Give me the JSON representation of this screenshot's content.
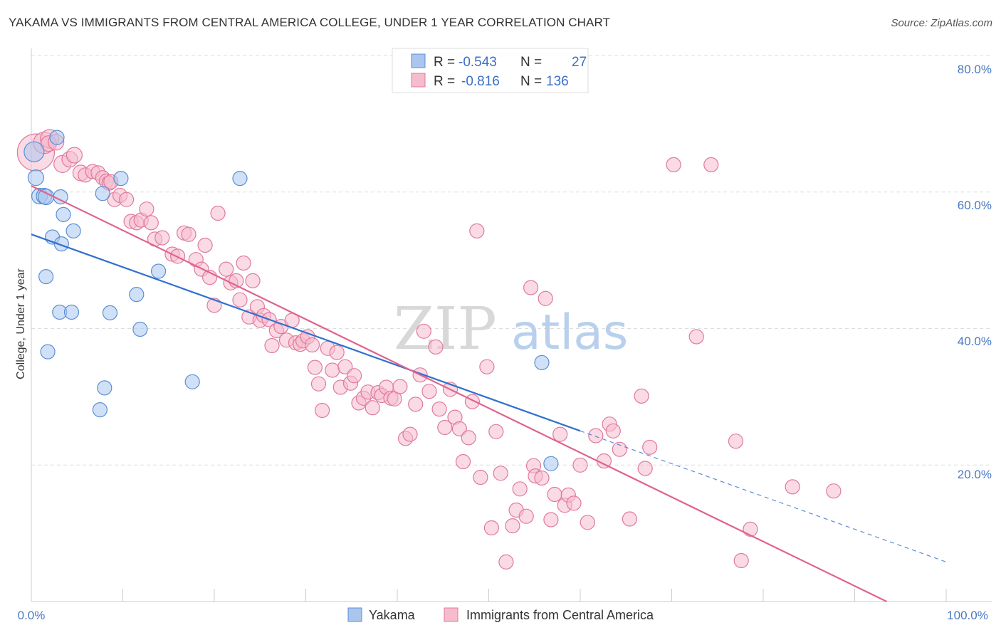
{
  "title": "YAKAMA VS IMMIGRANTS FROM CENTRAL AMERICA COLLEGE, UNDER 1 YEAR CORRELATION CHART",
  "source": "Source: ZipAtlas.com",
  "watermark": {
    "zip": "ZIP",
    "atlas": "atlas"
  },
  "colors": {
    "blue": "#5b8fd6",
    "blue_fill": "#aac6ee",
    "blue_line": "#2f6fd0",
    "pink": "#e07a9c",
    "pink_fill": "#f6bccd",
    "pink_line": "#e0638d",
    "grid": "#dddddd",
    "axis_label": "#4a78c4"
  },
  "legend": {
    "rows": [
      {
        "r_label": "R =",
        "r_value": "-0.543",
        "n_label": "N =",
        "n_value": "27"
      },
      {
        "r_label": "R =",
        "r_value": "-0.816",
        "n_label": "N =",
        "n_value": "136"
      }
    ]
  },
  "bottom_legend": [
    {
      "label": "Yakama"
    },
    {
      "label": "Immigrants from Central America"
    }
  ],
  "chart_data": {
    "type": "scatter",
    "ylabel": "College, Under 1 year",
    "xlabel": "",
    "x_tick_labels": [
      "0.0%",
      "100.0%"
    ],
    "y_tick_labels": [
      "20.0%",
      "40.0%",
      "60.0%",
      "80.0%"
    ],
    "xlim": [
      0,
      100
    ],
    "ylim": [
      0,
      82
    ],
    "y_ticks": [
      20,
      40,
      60,
      80
    ],
    "grid": true,
    "legend_position": "top-center",
    "series": [
      {
        "name": "Yakama",
        "trend": {
          "x0": 0,
          "y0": 53.8,
          "x1": 60,
          "y1": 25.0,
          "dash_to_x": 100,
          "dash_to_y": 5.8
        },
        "points": [
          [
            0.3,
            65.9,
            14
          ],
          [
            0.5,
            62.1,
            11
          ],
          [
            0.9,
            59.4,
            11
          ],
          [
            1.4,
            59.4,
            11
          ],
          [
            1.6,
            59.3,
            11
          ],
          [
            2.8,
            68.0,
            10
          ],
          [
            3.2,
            59.3,
            10
          ],
          [
            3.5,
            56.7,
            10
          ],
          [
            2.3,
            53.4,
            10
          ],
          [
            3.3,
            52.4,
            10
          ],
          [
            4.6,
            54.3,
            10
          ],
          [
            1.6,
            47.6,
            10
          ],
          [
            1.8,
            36.6,
            10
          ],
          [
            3.1,
            42.4,
            10
          ],
          [
            4.4,
            42.4,
            10
          ],
          [
            8.6,
            42.3,
            10
          ],
          [
            11.5,
            45.0,
            10
          ],
          [
            11.9,
            39.9,
            10
          ],
          [
            7.5,
            28.1,
            10
          ],
          [
            7.8,
            59.8,
            10
          ],
          [
            9.8,
            62.0,
            10
          ],
          [
            13.9,
            48.4,
            10
          ],
          [
            22.8,
            62.0,
            10
          ],
          [
            17.6,
            32.2,
            10
          ],
          [
            8.0,
            31.3,
            10
          ],
          [
            55.8,
            35.0,
            10
          ],
          [
            56.8,
            20.2,
            10
          ]
        ]
      },
      {
        "name": "Immigrants from Central America",
        "trend": {
          "x0": 0,
          "y0": 60.9,
          "x1": 93.5,
          "y1": 0
        },
        "points": [
          [
            0.5,
            65.8,
            26
          ],
          [
            1.4,
            67.2,
            15
          ],
          [
            2.0,
            67.8,
            13
          ],
          [
            1.9,
            67.1,
            11
          ],
          [
            2.7,
            67.3,
            11
          ],
          [
            3.4,
            64.1,
            12
          ],
          [
            4.2,
            64.8,
            11
          ],
          [
            4.7,
            65.4,
            11
          ],
          [
            5.4,
            62.8,
            11
          ],
          [
            5.9,
            62.5,
            10
          ],
          [
            6.7,
            63.0,
            10
          ],
          [
            7.3,
            62.8,
            10
          ],
          [
            7.8,
            62.1,
            10
          ],
          [
            8.2,
            61.6,
            10
          ],
          [
            8.5,
            61.3,
            10
          ],
          [
            8.7,
            61.5,
            10
          ],
          [
            9.1,
            58.9,
            10
          ],
          [
            9.7,
            59.5,
            10
          ],
          [
            10.4,
            58.9,
            10
          ],
          [
            10.9,
            55.7,
            10
          ],
          [
            11.5,
            55.5,
            10
          ],
          [
            12.0,
            55.9,
            10
          ],
          [
            12.6,
            57.5,
            10
          ],
          [
            13.1,
            55.5,
            10
          ],
          [
            13.5,
            53.1,
            10
          ],
          [
            14.3,
            53.3,
            10
          ],
          [
            15.4,
            50.9,
            10
          ],
          [
            16.0,
            50.6,
            10
          ],
          [
            16.7,
            54.0,
            10
          ],
          [
            17.2,
            53.8,
            10
          ],
          [
            18.0,
            50.1,
            10
          ],
          [
            18.6,
            48.7,
            10
          ],
          [
            19.0,
            52.2,
            10
          ],
          [
            19.5,
            47.5,
            10
          ],
          [
            20.0,
            43.4,
            10
          ],
          [
            20.4,
            56.9,
            10
          ],
          [
            21.3,
            48.7,
            10
          ],
          [
            21.8,
            46.7,
            10
          ],
          [
            22.4,
            47.0,
            10
          ],
          [
            22.8,
            44.2,
            10
          ],
          [
            23.2,
            49.6,
            10
          ],
          [
            23.8,
            41.7,
            10
          ],
          [
            24.2,
            47.0,
            10
          ],
          [
            24.7,
            43.2,
            10
          ],
          [
            25.0,
            41.2,
            10
          ],
          [
            25.4,
            41.9,
            10
          ],
          [
            26.0,
            41.3,
            10
          ],
          [
            26.3,
            37.5,
            10
          ],
          [
            26.8,
            39.7,
            10
          ],
          [
            27.3,
            40.3,
            10
          ],
          [
            27.9,
            38.3,
            10
          ],
          [
            28.5,
            41.2,
            10
          ],
          [
            28.9,
            37.9,
            10
          ],
          [
            29.4,
            37.7,
            10
          ],
          [
            29.7,
            38.2,
            10
          ],
          [
            30.2,
            38.8,
            10
          ],
          [
            30.7,
            37.6,
            10
          ],
          [
            31.0,
            34.3,
            10
          ],
          [
            31.4,
            31.9,
            10
          ],
          [
            31.8,
            28.0,
            10
          ],
          [
            32.4,
            37.1,
            10
          ],
          [
            32.9,
            33.9,
            10
          ],
          [
            33.4,
            36.5,
            10
          ],
          [
            33.8,
            31.4,
            10
          ],
          [
            34.3,
            34.4,
            10
          ],
          [
            34.9,
            32.0,
            10
          ],
          [
            35.3,
            33.1,
            10
          ],
          [
            35.8,
            29.1,
            10
          ],
          [
            36.3,
            29.8,
            10
          ],
          [
            36.8,
            30.7,
            10
          ],
          [
            37.3,
            28.4,
            10
          ],
          [
            37.9,
            30.6,
            10
          ],
          [
            38.3,
            30.2,
            10
          ],
          [
            38.8,
            31.4,
            10
          ],
          [
            39.3,
            29.8,
            10
          ],
          [
            39.7,
            29.7,
            10
          ],
          [
            40.3,
            31.5,
            10
          ],
          [
            40.9,
            23.9,
            10
          ],
          [
            41.4,
            24.5,
            10
          ],
          [
            42.0,
            28.9,
            10
          ],
          [
            42.5,
            33.2,
            10
          ],
          [
            42.9,
            39.6,
            10
          ],
          [
            43.5,
            30.8,
            10
          ],
          [
            44.2,
            37.3,
            10
          ],
          [
            44.6,
            28.2,
            10
          ],
          [
            45.2,
            25.5,
            10
          ],
          [
            45.8,
            31.1,
            10
          ],
          [
            46.3,
            27.0,
            10
          ],
          [
            46.8,
            25.3,
            10
          ],
          [
            47.2,
            20.5,
            10
          ],
          [
            47.8,
            24.0,
            10
          ],
          [
            48.2,
            29.3,
            10
          ],
          [
            48.7,
            54.3,
            10
          ],
          [
            49.1,
            18.2,
            10
          ],
          [
            49.8,
            34.4,
            10
          ],
          [
            50.3,
            10.8,
            10
          ],
          [
            50.8,
            24.9,
            10
          ],
          [
            51.3,
            18.8,
            10
          ],
          [
            51.9,
            5.8,
            10
          ],
          [
            52.6,
            11.1,
            10
          ],
          [
            53.0,
            13.4,
            10
          ],
          [
            53.4,
            16.5,
            10
          ],
          [
            54.1,
            12.5,
            10
          ],
          [
            54.6,
            46.0,
            10
          ],
          [
            54.9,
            19.9,
            10
          ],
          [
            55.1,
            18.4,
            10
          ],
          [
            55.8,
            18.1,
            10
          ],
          [
            56.2,
            44.4,
            10
          ],
          [
            56.8,
            12.0,
            10
          ],
          [
            57.2,
            15.7,
            10
          ],
          [
            57.8,
            24.5,
            10
          ],
          [
            58.3,
            14.1,
            10
          ],
          [
            58.7,
            15.6,
            10
          ],
          [
            59.3,
            14.4,
            10
          ],
          [
            60.0,
            20.0,
            10
          ],
          [
            60.8,
            11.6,
            10
          ],
          [
            61.7,
            24.3,
            10
          ],
          [
            62.6,
            20.6,
            10
          ],
          [
            63.2,
            26.0,
            10
          ],
          [
            63.6,
            25.0,
            10
          ],
          [
            64.3,
            22.3,
            10
          ],
          [
            65.4,
            12.1,
            10
          ],
          [
            66.7,
            30.1,
            10
          ],
          [
            67.1,
            19.5,
            10
          ],
          [
            67.6,
            22.6,
            10
          ],
          [
            70.2,
            64.0,
            10
          ],
          [
            72.7,
            38.8,
            10
          ],
          [
            74.3,
            64.0,
            10
          ],
          [
            77.0,
            23.5,
            10
          ],
          [
            77.6,
            6.0,
            10
          ],
          [
            78.6,
            10.6,
            10
          ],
          [
            83.2,
            16.8,
            10
          ],
          [
            87.7,
            16.2,
            10
          ]
        ]
      }
    ]
  }
}
